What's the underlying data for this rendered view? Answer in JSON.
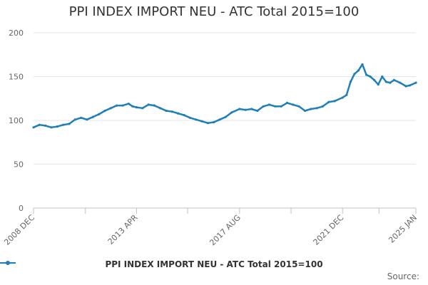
{
  "chart_data": {
    "type": "line",
    "title": "PPI INDEX IMPORT NEU - ATC Total 2015=100",
    "ylim": [
      0,
      200
    ],
    "yticks": [
      0,
      50,
      100,
      150,
      200
    ],
    "xtick_labels": [
      "2008 DEC",
      "2013 APR",
      "2017 AUG",
      "2021 DEC",
      "2025 JAN"
    ],
    "grid": "horizontal",
    "legend_position": "bottom",
    "series": [
      {
        "name": "PPI INDEX IMPORT NEU - ATC Total 2015=100",
        "color": "#1f7fb8",
        "points": [
          [
            "2008-12",
            92
          ],
          [
            "2009-03",
            95
          ],
          [
            "2009-06",
            94
          ],
          [
            "2009-09",
            92
          ],
          [
            "2009-12",
            93
          ],
          [
            "2010-03",
            95
          ],
          [
            "2010-06",
            96
          ],
          [
            "2010-09",
            101
          ],
          [
            "2010-12",
            103
          ],
          [
            "2011-03",
            101
          ],
          [
            "2011-06",
            104
          ],
          [
            "2011-09",
            107
          ],
          [
            "2011-12",
            111
          ],
          [
            "2012-03",
            114
          ],
          [
            "2012-06",
            117
          ],
          [
            "2012-09",
            117
          ],
          [
            "2012-12",
            119
          ],
          [
            "2013-02",
            116
          ],
          [
            "2013-04",
            115
          ],
          [
            "2013-07",
            114
          ],
          [
            "2013-10",
            118
          ],
          [
            "2014-01",
            117
          ],
          [
            "2014-04",
            114
          ],
          [
            "2014-07",
            111
          ],
          [
            "2014-10",
            110
          ],
          [
            "2015-01",
            108
          ],
          [
            "2015-04",
            106
          ],
          [
            "2015-07",
            103
          ],
          [
            "2015-10",
            101
          ],
          [
            "2016-01",
            99
          ],
          [
            "2016-04",
            97
          ],
          [
            "2016-07",
            98
          ],
          [
            "2016-10",
            101
          ],
          [
            "2017-01",
            104
          ],
          [
            "2017-04",
            109
          ],
          [
            "2017-08",
            113
          ],
          [
            "2017-11",
            112
          ],
          [
            "2018-02",
            113
          ],
          [
            "2018-05",
            111
          ],
          [
            "2018-08",
            116
          ],
          [
            "2018-11",
            118
          ],
          [
            "2019-02",
            116
          ],
          [
            "2019-05",
            116
          ],
          [
            "2019-08",
            120
          ],
          [
            "2019-11",
            118
          ],
          [
            "2020-02",
            116
          ],
          [
            "2020-05",
            111
          ],
          [
            "2020-08",
            113
          ],
          [
            "2020-11",
            114
          ],
          [
            "2021-02",
            116
          ],
          [
            "2021-05",
            121
          ],
          [
            "2021-08",
            122
          ],
          [
            "2021-12",
            126
          ],
          [
            "2022-02",
            129
          ],
          [
            "2022-04",
            144
          ],
          [
            "2022-06",
            153
          ],
          [
            "2022-08",
            157
          ],
          [
            "2022-10",
            164
          ],
          [
            "2022-12",
            152
          ],
          [
            "2023-02",
            150
          ],
          [
            "2023-04",
            146
          ],
          [
            "2023-06",
            141
          ],
          [
            "2023-08",
            150
          ],
          [
            "2023-10",
            144
          ],
          [
            "2023-12",
            143
          ],
          [
            "2024-02",
            146
          ],
          [
            "2024-05",
            143
          ],
          [
            "2024-08",
            139
          ],
          [
            "2024-10",
            140
          ],
          [
            "2025-01",
            143
          ]
        ]
      }
    ]
  },
  "legend": {
    "label": "PPI INDEX IMPORT NEU - ATC Total 2015=100"
  },
  "footer": {
    "source_label": "Source:"
  }
}
